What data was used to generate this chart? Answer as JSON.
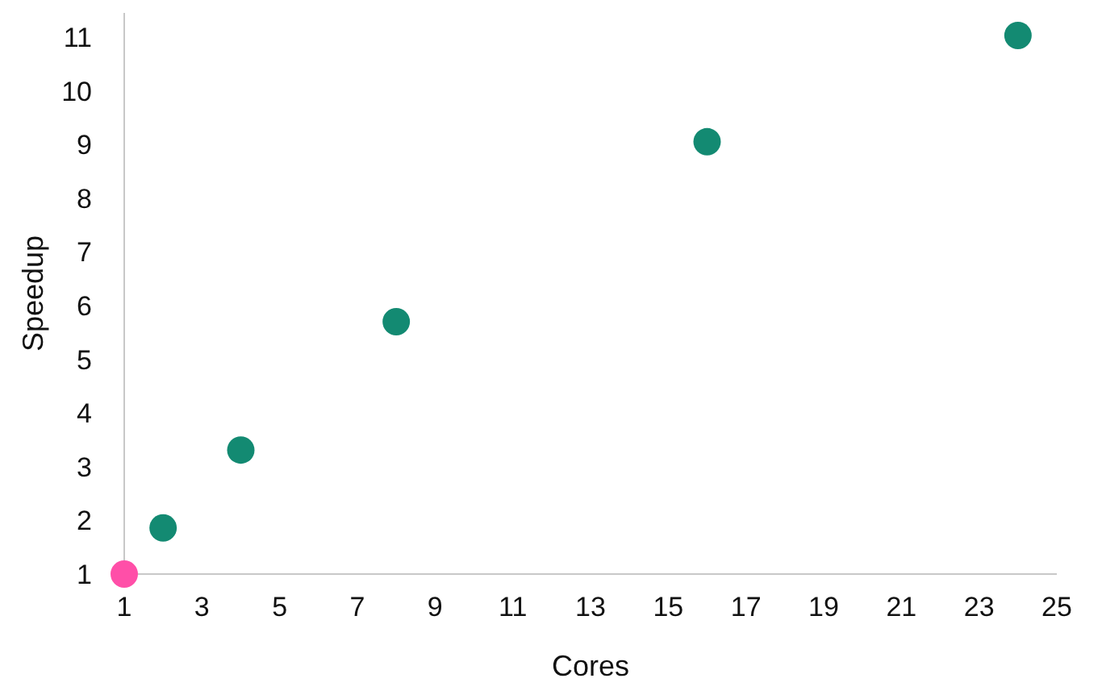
{
  "chart_data": {
    "type": "scatter",
    "xlabel": "Cores",
    "ylabel": "Speedup",
    "x": [
      1,
      2,
      4,
      8,
      16,
      24
    ],
    "values": [
      1,
      1.86,
      3.31,
      5.7,
      9.05,
      11.03
    ],
    "colors": [
      "#ff4fa8",
      "#138a72",
      "#138a72",
      "#138a72",
      "#138a72",
      "#138a72"
    ],
    "xlim": [
      1,
      25
    ],
    "xticks": [
      1,
      3,
      5,
      7,
      9,
      11,
      13,
      15,
      17,
      19,
      21,
      23,
      25
    ],
    "ylim": [
      1,
      11.45
    ],
    "yticks": [
      1,
      2,
      3,
      4,
      5,
      6,
      7,
      8,
      9,
      10,
      11
    ],
    "marker": "circle"
  }
}
